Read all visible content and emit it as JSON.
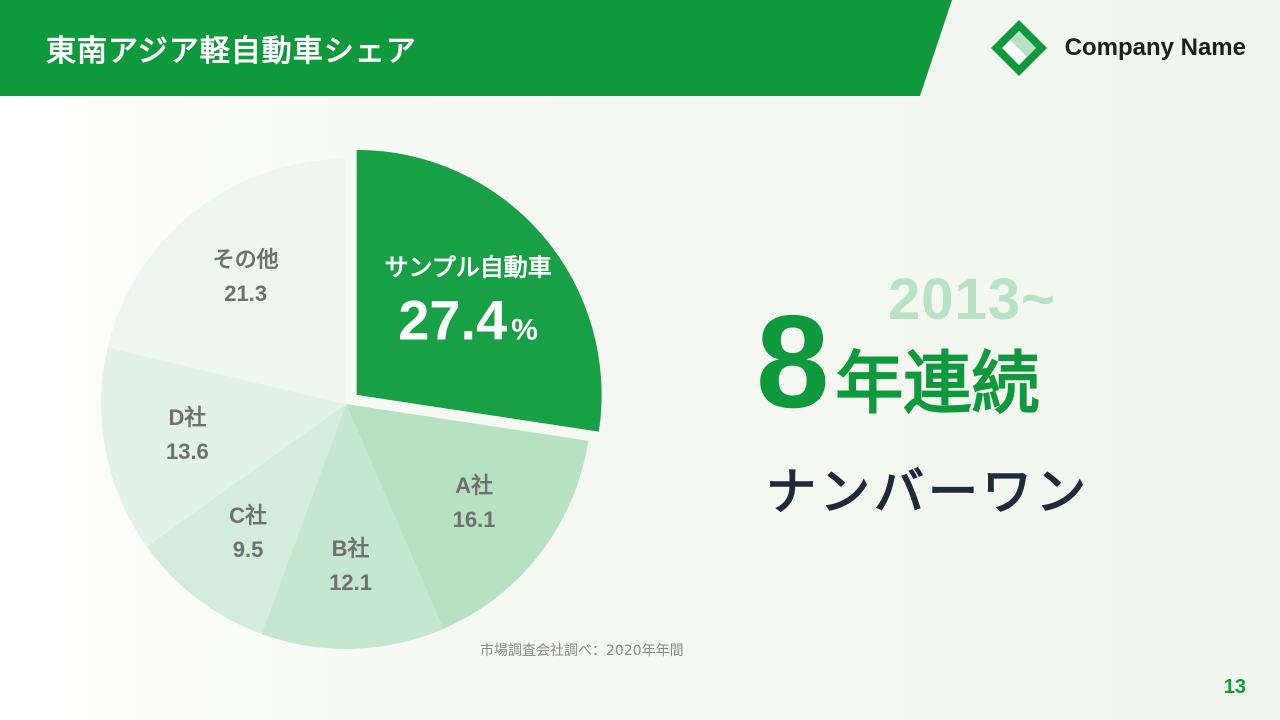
{
  "header": {
    "title": "東南アジア軽自動車シェア",
    "brand_name": "Company Name"
  },
  "colors": {
    "brand_green": "#0e9a3c",
    "highlight_green": "#18a046"
  },
  "chart_data": {
    "type": "pie",
    "unit": "%",
    "categories": [
      "サンプル自動車",
      "A社",
      "B社",
      "C社",
      "D社",
      "その他"
    ],
    "values": [
      27.4,
      16.1,
      12.1,
      9.5,
      13.6,
      21.3
    ],
    "value_labels": [
      "27.4",
      "16.1",
      "12.1",
      "9.5",
      "13.6",
      "21.3"
    ],
    "highlight_unit": "%",
    "highlight_index": 0,
    "exploded_index": 0,
    "start_angle": "12 o'clock",
    "direction": "clockwise",
    "colors": [
      "#18a046",
      "#b6e1c3",
      "#c5e7d0",
      "#d4ecdb",
      "#e2f2e7",
      "#eef6f0"
    ]
  },
  "source": "市場調査会社調べ：2020年年間",
  "claim": {
    "year": "2013~",
    "number": "8",
    "suffix": "年連続",
    "subtitle": "ナンバーワン"
  },
  "page_number": "13"
}
